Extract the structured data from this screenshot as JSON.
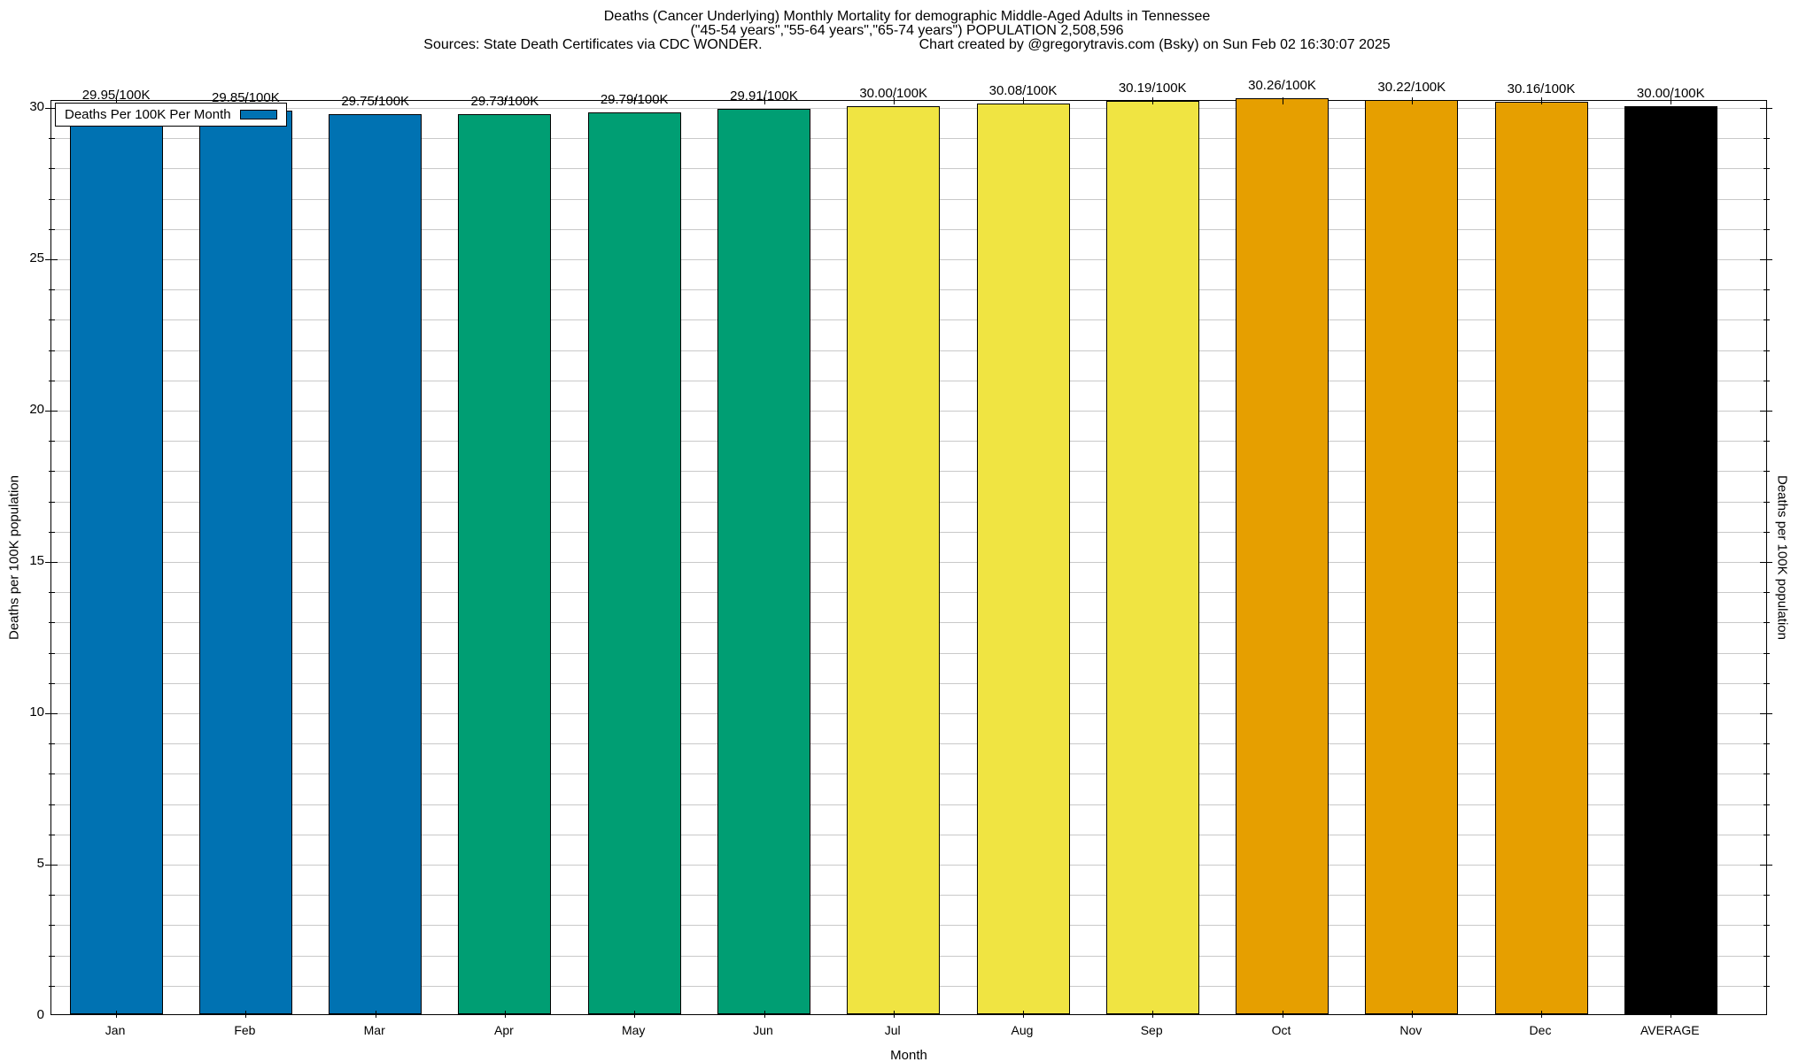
{
  "title": {
    "line1": "Deaths (Cancer Underlying) Monthly Mortality for demographic Middle-Aged Adults in Tennessee",
    "line2": "(\"45-54 years\",\"55-64 years\",\"65-74 years\") POPULATION 2,508,596",
    "sources": "Sources: State Death Certificates via CDC WONDER.",
    "credit": "Chart created by @gregorytravis.com (Bsky) on Sun Feb 02 16:30:07 2025"
  },
  "chart_data": {
    "type": "bar",
    "categories": [
      "Jan",
      "Feb",
      "Mar",
      "Apr",
      "May",
      "Jun",
      "Jul",
      "Aug",
      "Sep",
      "Oct",
      "Nov",
      "Dec",
      "AVERAGE"
    ],
    "values": [
      29.95,
      29.85,
      29.75,
      29.73,
      29.79,
      29.91,
      30.0,
      30.08,
      30.19,
      30.26,
      30.22,
      30.16,
      30.0
    ],
    "bar_labels": [
      "29.95/100K",
      "29.85/100K",
      "29.75/100K",
      "29.73/100K",
      "29.79/100K",
      "29.91/100K",
      "30.00/100K",
      "30.08/100K",
      "30.19/100K",
      "30.26/100K",
      "30.22/100K",
      "30.16/100K",
      "30.00/100K"
    ],
    "bar_colors": [
      "#0072B2",
      "#0072B2",
      "#0072B2",
      "#009E73",
      "#009E73",
      "#009E73",
      "#F0E442",
      "#F0E442",
      "#F0E442",
      "#E69F00",
      "#E69F00",
      "#E69F00",
      "#000000"
    ],
    "xlabel": "Month",
    "ylabel_left": "Deaths per 100K population",
    "ylabel_right": "Deaths per 100K population",
    "ylim": [
      0,
      30.23
    ],
    "yticks_major": [
      0,
      5,
      10,
      15,
      20,
      25,
      30
    ],
    "grid": "horizontal minor gridlines every 1 unit, light gray",
    "legend": {
      "label": "Deaths Per 100K Per Month",
      "swatch_color": "#0072B2",
      "position": "top-left",
      "boxed": true
    }
  }
}
